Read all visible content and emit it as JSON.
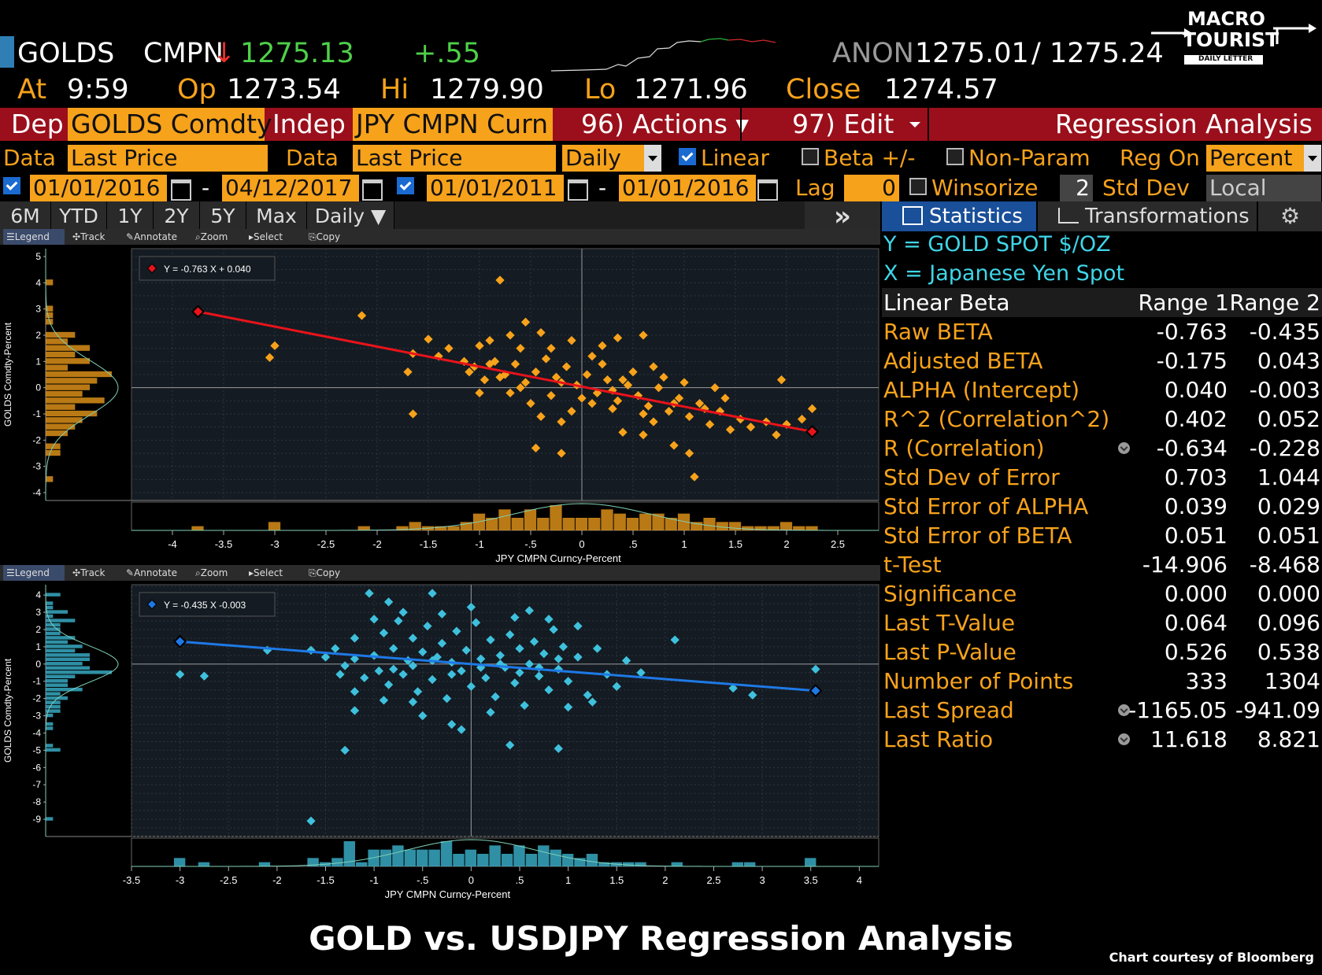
{
  "header": {
    "ticker": "GOLDS",
    "source": "CMPN",
    "arrow": "↓",
    "last": "1275.13",
    "change": "+.55",
    "bidask_source": "ANON",
    "bid": "1275.01",
    "slash": "/",
    "ask": "1275.24",
    "at_label": "At",
    "at_time": "9:59",
    "op_label": "Op",
    "op": "1273.54",
    "hi_label": "Hi",
    "hi": "1279.90",
    "lo_label": "Lo",
    "lo": "1271.96",
    "close_label": "Close",
    "close": "1274.57"
  },
  "logo": {
    "line1": "MACRO",
    "line2": "TOURIST",
    "line3": "DAILY LETTER"
  },
  "command_bar": {
    "dep_label": "Dep",
    "dep_value": "GOLDS Comdty",
    "indep_label": "Indep",
    "indep_value": "JPY CMPN Curn",
    "actions": "96) Actions ▾",
    "edit": "97) Edit",
    "title": "Regression Analysis"
  },
  "settings": {
    "data_label": "Data",
    "dep_field": "Last Price",
    "data_label2": "Data",
    "indep_field": "Last Price",
    "period": "Daily",
    "linear": "Linear",
    "beta": "Beta +/-",
    "nonparam": "Non-Param",
    "reg_on": "Reg On",
    "reg_on_value": "Percent",
    "range1_start": "01/01/2016",
    "range1_end": "04/12/2017",
    "range2_start": "01/01/2011",
    "range2_end": "01/01/2016",
    "dash": "-",
    "lag_label": "Lag",
    "lag_value": "0",
    "winsorize": "Winsorize",
    "std_dev_num": "2",
    "std_dev_label": "Std Dev",
    "local": "Local"
  },
  "tabs": {
    "periods": [
      "6M",
      "YTD",
      "1Y",
      "2Y",
      "5Y",
      "Max"
    ],
    "daily": "Daily ▼",
    "more": "»",
    "statistics": "Statistics",
    "transformations": "Transformations"
  },
  "toolbar": {
    "legend": "Legend",
    "track": "Track",
    "annotate": "Annotate",
    "zoom": "Zoom",
    "select": "Select",
    "copy": "Copy"
  },
  "stats": {
    "y_line": "Y = GOLD SPOT $/OZ",
    "x_line": "X = Japanese Yen Spot",
    "header": {
      "label": "Linear Beta",
      "range1": "Range 1",
      "range2": "Range 2"
    },
    "rows": [
      {
        "label": "Raw BETA",
        "r1": "-0.763",
        "r2": "-0.435"
      },
      {
        "label": "Adjusted BETA",
        "r1": "-0.175",
        "r2": "0.043"
      },
      {
        "label": "ALPHA (Intercept)",
        "r1": "0.040",
        "r2": "-0.003"
      },
      {
        "label": "R^2 (Correlation^2)",
        "r1": "0.402",
        "r2": "0.052"
      },
      {
        "label": "R (Correlation)",
        "r1": "-0.634",
        "r2": "-0.228"
      },
      {
        "label": "Std Dev of Error",
        "r1": "0.703",
        "r2": "1.044"
      },
      {
        "label": "Std Error of ALPHA",
        "r1": "0.039",
        "r2": "0.029"
      },
      {
        "label": "Std Error of BETA",
        "r1": "0.051",
        "r2": "0.051"
      },
      {
        "label": "t-Test",
        "r1": "-14.906",
        "r2": "-8.468"
      },
      {
        "label": "Significance",
        "r1": "0.000",
        "r2": "0.000"
      },
      {
        "label": "Last T-Value",
        "r1": "0.064",
        "r2": "0.096"
      },
      {
        "label": "Last P-Value",
        "r1": "0.526",
        "r2": "0.538"
      },
      {
        "label": "Number of Points",
        "r1": "333",
        "r2": "1304"
      },
      {
        "label": "Last Spread",
        "r1": "-1165.05",
        "r2": "-941.09"
      },
      {
        "label": "Last Ratio",
        "r1": "11.618",
        "r2": "8.821"
      }
    ]
  },
  "footer": {
    "title": "GOLD vs. USDJPY Regression Analysis",
    "credit": "Chart courtesy of Bloomberg"
  },
  "chart_data": [
    {
      "type": "scatter",
      "title": "",
      "equation": "Y = -0.763 X + 0.040",
      "xlabel": "JPY CMPN Curncy-Percent",
      "ylabel": "GOLDS Comdty-Percent",
      "xlim": [
        -4.4,
        2.9
      ],
      "ylim": [
        -4.3,
        5.3
      ],
      "xticks": [
        "-4",
        "-3.5",
        "-3",
        "-2.5",
        "-2",
        "-1.5",
        "-1",
        "-.5",
        "0",
        ".5",
        "1",
        "1.5",
        "2",
        "2.5"
      ],
      "xtick_values": [
        -4,
        -3.5,
        -3,
        -2.5,
        -2,
        -1.5,
        -1,
        -0.5,
        0,
        0.5,
        1,
        1.5,
        2,
        2.5
      ],
      "yticks": [
        5,
        4,
        3,
        2,
        1,
        0,
        -1,
        -2,
        -3,
        -4
      ],
      "fit": {
        "slope": -0.763,
        "intercept": 0.04,
        "x_range": [
          -3.75,
          2.25
        ]
      },
      "point_color": "#f7a21b",
      "line_color": "#e8131b",
      "points": [
        [
          -3.75,
          2.9
        ],
        [
          -3.0,
          1.6
        ],
        [
          -3.05,
          1.15
        ],
        [
          -2.15,
          2.75
        ],
        [
          -1.65,
          1.3
        ],
        [
          -1.5,
          1.85
        ],
        [
          -1.65,
          -1.0
        ],
        [
          -1.7,
          0.6
        ],
        [
          -0.8,
          4.1
        ],
        [
          -0.55,
          2.5
        ],
        [
          -0.1,
          1.8
        ],
        [
          0.2,
          1.6
        ],
        [
          0.35,
          1.9
        ],
        [
          0.6,
          2.0
        ],
        [
          -1.0,
          1.6
        ],
        [
          -0.9,
          1.8
        ],
        [
          -0.7,
          2.0
        ],
        [
          -0.6,
          1.5
        ],
        [
          -0.4,
          2.1
        ],
        [
          -1.15,
          1.0
        ],
        [
          -1.05,
          0.8
        ],
        [
          -0.95,
          0.3
        ],
        [
          -0.85,
          1.0
        ],
        [
          -0.75,
          0.5
        ],
        [
          -0.65,
          0.9
        ],
        [
          -0.55,
          0.2
        ],
        [
          -0.45,
          0.6
        ],
        [
          -0.35,
          1.1
        ],
        [
          -0.25,
          0.4
        ],
        [
          -0.15,
          0.8
        ],
        [
          -0.05,
          0.1
        ],
        [
          0.05,
          0.5
        ],
        [
          0.15,
          -0.2
        ],
        [
          0.25,
          0.3
        ],
        [
          0.35,
          -0.5
        ],
        [
          0.45,
          0.1
        ],
        [
          0.55,
          -0.3
        ],
        [
          0.65,
          -0.7
        ],
        [
          0.75,
          0.0
        ],
        [
          0.85,
          -0.9
        ],
        [
          0.95,
          -0.4
        ],
        [
          1.05,
          -1.1
        ],
        [
          1.15,
          -0.6
        ],
        [
          1.25,
          -1.4
        ],
        [
          1.35,
          -0.9
        ],
        [
          1.45,
          -1.6
        ],
        [
          1.55,
          -1.2
        ],
        [
          1.65,
          -1.5
        ],
        [
          1.8,
          -1.3
        ],
        [
          1.9,
          -1.8
        ],
        [
          2.0,
          -1.4
        ],
        [
          2.15,
          -1.2
        ],
        [
          2.25,
          -0.8
        ],
        [
          1.95,
          0.3
        ],
        [
          1.3,
          0.0
        ],
        [
          1.1,
          -3.4
        ],
        [
          -0.2,
          -2.5
        ],
        [
          -0.45,
          -2.3
        ],
        [
          -0.2,
          -1.3
        ],
        [
          0.4,
          -1.7
        ],
        [
          0.6,
          -1.8
        ],
        [
          0.9,
          -2.2
        ],
        [
          1.05,
          -2.5
        ],
        [
          -0.6,
          0.0
        ],
        [
          -0.3,
          -0.3
        ],
        [
          0.1,
          -0.6
        ],
        [
          0.3,
          -0.1
        ],
        [
          0.5,
          0.6
        ],
        [
          0.7,
          0.8
        ],
        [
          0.8,
          0.4
        ],
        [
          1.0,
          0.2
        ],
        [
          -0.5,
          -0.6
        ],
        [
          -0.2,
          0.2
        ],
        [
          0.0,
          -0.4
        ],
        [
          0.2,
          0.9
        ],
        [
          0.4,
          0.3
        ],
        [
          -0.8,
          0.4
        ],
        [
          -0.9,
          0.9
        ],
        [
          -1.1,
          0.6
        ],
        [
          -1.3,
          1.5
        ],
        [
          -1.4,
          1.2
        ],
        [
          -0.3,
          1.5
        ],
        [
          0.1,
          1.2
        ],
        [
          -0.7,
          -0.2
        ],
        [
          0.6,
          -1.0
        ],
        [
          0.9,
          -0.6
        ],
        [
          1.2,
          -0.8
        ],
        [
          0.3,
          -0.8
        ],
        [
          -0.1,
          -0.9
        ],
        [
          0.7,
          -1.3
        ],
        [
          1.4,
          -0.4
        ],
        [
          -1.0,
          -0.2
        ],
        [
          -0.4,
          -1.1
        ]
      ]
    },
    {
      "type": "scatter",
      "title": "",
      "equation": "Y = -0.435 X  -0.003",
      "xlabel": "JPY CMPN Curncy-Percent",
      "ylabel": "GOLDS Comdty-Percent",
      "xlim": [
        -3.5,
        4.2
      ],
      "ylim": [
        -10.0,
        4.6
      ],
      "xticks": [
        "-3.5",
        "-3",
        "-2.5",
        "-2",
        "-1.5",
        "-1",
        "-.5",
        "0",
        ".5",
        "1",
        "1.5",
        "2",
        "2.5",
        "3",
        "3.5",
        "4"
      ],
      "xtick_values": [
        -3.5,
        -3,
        -2.5,
        -2,
        -1.5,
        -1,
        -0.5,
        0,
        0.5,
        1,
        1.5,
        2,
        2.5,
        3,
        3.5,
        4
      ],
      "yticks": [
        4,
        3,
        2,
        1,
        0,
        -1,
        -2,
        -3,
        -4,
        -5,
        -6,
        -7,
        -8,
        -9
      ],
      "fit": {
        "slope": -0.435,
        "intercept": -0.003,
        "x_range": [
          -3.0,
          3.55
        ]
      },
      "point_color": "#3fc0dc",
      "line_color": "#1e79e6",
      "points": [
        [
          -3.0,
          1.3
        ],
        [
          -3.0,
          -0.6
        ],
        [
          -2.75,
          -0.7
        ],
        [
          -2.1,
          0.8
        ],
        [
          -1.65,
          0.8
        ],
        [
          -1.65,
          -9.1
        ],
        [
          -1.3,
          -5.0
        ],
        [
          -1.2,
          1.5
        ],
        [
          -1.2,
          -1.6
        ],
        [
          -1.2,
          -2.7
        ],
        [
          -1.3,
          -0.1
        ],
        [
          -1.05,
          4.1
        ],
        [
          -0.85,
          3.6
        ],
        [
          -0.6,
          -2.2
        ],
        [
          -0.4,
          4.1
        ],
        [
          -0.2,
          -3.5
        ],
        [
          -0.1,
          -3.8
        ],
        [
          0.4,
          -4.7
        ],
        [
          0.9,
          -4.9
        ],
        [
          1.75,
          -0.5
        ],
        [
          2.1,
          1.4
        ],
        [
          2.7,
          -1.4
        ],
        [
          2.9,
          -1.8
        ],
        [
          3.55,
          -0.3
        ],
        [
          3.55,
          -1.5
        ],
        [
          -1.0,
          0.5
        ],
        [
          -0.95,
          -0.4
        ],
        [
          -0.9,
          1.8
        ],
        [
          -0.85,
          -1.2
        ],
        [
          -0.8,
          0.9
        ],
        [
          -0.75,
          2.5
        ],
        [
          -0.7,
          -0.6
        ],
        [
          -0.65,
          0.2
        ],
        [
          -0.6,
          1.5
        ],
        [
          -0.55,
          -1.6
        ],
        [
          -0.5,
          0.7
        ],
        [
          -0.45,
          2.2
        ],
        [
          -0.4,
          -0.9
        ],
        [
          -0.35,
          0.4
        ],
        [
          -0.3,
          1.2
        ],
        [
          -0.25,
          -2.0
        ],
        [
          -0.2,
          0.1
        ],
        [
          -0.15,
          1.9
        ],
        [
          -0.1,
          -0.4
        ],
        [
          -0.05,
          0.8
        ],
        [
          0.0,
          -1.3
        ],
        [
          0.05,
          2.4
        ],
        [
          0.1,
          0.3
        ],
        [
          0.15,
          -0.8
        ],
        [
          0.2,
          1.4
        ],
        [
          0.25,
          -1.9
        ],
        [
          0.3,
          0.5
        ],
        [
          0.35,
          -0.2
        ],
        [
          0.4,
          1.7
        ],
        [
          0.45,
          -1.1
        ],
        [
          0.5,
          0.9
        ],
        [
          0.55,
          -2.4
        ],
        [
          0.6,
          0.0
        ],
        [
          0.65,
          1.3
        ],
        [
          0.7,
          -0.7
        ],
        [
          0.75,
          0.6
        ],
        [
          0.8,
          -1.5
        ],
        [
          0.85,
          2.0
        ],
        [
          0.9,
          -0.3
        ],
        [
          0.95,
          1.0
        ],
        [
          1.0,
          -1.0
        ],
        [
          1.1,
          0.4
        ],
        [
          1.2,
          -1.8
        ],
        [
          1.3,
          0.9
        ],
        [
          1.4,
          -0.6
        ],
        [
          1.5,
          -1.3
        ],
        [
          1.6,
          0.2
        ],
        [
          -1.4,
          0.9
        ],
        [
          -1.35,
          -0.6
        ],
        [
          -1.5,
          0.4
        ],
        [
          -1.1,
          -0.8
        ],
        [
          -1.0,
          2.6
        ],
        [
          -0.9,
          -2.1
        ],
        [
          -0.7,
          3.0
        ],
        [
          -0.5,
          -3.0
        ],
        [
          -0.3,
          2.9
        ],
        [
          0.0,
          3.3
        ],
        [
          0.2,
          -2.8
        ],
        [
          0.45,
          2.7
        ],
        [
          0.6,
          3.1
        ],
        [
          0.8,
          2.6
        ],
        [
          1.1,
          2.2
        ],
        [
          1.25,
          -2.2
        ],
        [
          -0.6,
          -0.1
        ],
        [
          -0.2,
          -0.6
        ],
        [
          0.3,
          0.0
        ],
        [
          0.7,
          -0.2
        ],
        [
          -0.4,
          0.2
        ],
        [
          0.1,
          -0.2
        ],
        [
          0.5,
          -0.5
        ],
        [
          -0.8,
          -0.3
        ],
        [
          0.9,
          0.3
        ],
        [
          -1.2,
          0.3
        ],
        [
          1.0,
          -2.5
        ]
      ]
    }
  ]
}
